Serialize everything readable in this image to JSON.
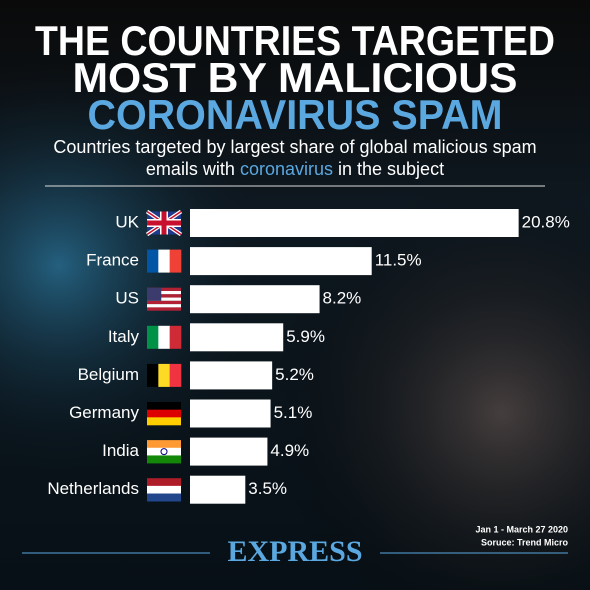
{
  "chart_data": {
    "type": "bar",
    "title": [
      "THE COUNTRIES TARGETED",
      "MOST BY MALICIOUS",
      "CORONAVIRUS SPAM"
    ],
    "subtitle": [
      "Countries targeted by largest share of global malicious spam",
      "emails with ",
      "coronavirus",
      " in the subject"
    ],
    "categories": [
      "UK",
      "France",
      "US",
      "Italy",
      "Belgium",
      "Germany",
      "India",
      "Netherlands"
    ],
    "values": [
      20.8,
      11.5,
      8.2,
      5.9,
      5.2,
      5.1,
      4.9,
      3.5
    ],
    "value_labels": [
      "20.8%",
      "11.5%",
      "8.2%",
      "5.9%",
      "5.2%",
      "5.1%",
      "4.9%",
      "3.5%"
    ],
    "color": "#ffffff",
    "date_note": "Jan 1 - March 27 2020",
    "source": "Soruce: Trend Micro",
    "brand": "EXPRESS"
  }
}
